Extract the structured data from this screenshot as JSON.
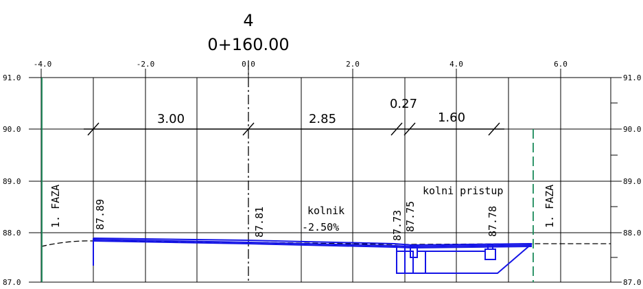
{
  "header": {
    "number": "4",
    "station": "0+160.00"
  },
  "axes": {
    "x_ticks": [
      "-4.0",
      "-2.0",
      "0.0",
      "2.0",
      "4.0",
      "6.0"
    ],
    "y_ticks_left": [
      "91.0",
      "90.0",
      "89.0",
      "88.0",
      "87.0"
    ],
    "y_ticks_right": [
      "91.0",
      "90.0",
      "89.0",
      "88.0",
      "87.0"
    ]
  },
  "dimensions": {
    "seg1": "3.00",
    "seg2": "2.85",
    "seg3": "0.27",
    "seg4": "1.60"
  },
  "elevations": {
    "e1": "87.89",
    "e2": "87.81",
    "e3": "87.73",
    "e4": "87.75",
    "e5": "87.78"
  },
  "labels": {
    "faza_left": "1. FAZA",
    "faza_right": "1. FAZA",
    "kolnik": "kolnik",
    "slope": "-2.50%",
    "kolni_pristup": "kolni pristup"
  },
  "colors": {
    "grid": "#000000",
    "structure": "#1414e6",
    "phase_line": "#1a8a5a"
  }
}
